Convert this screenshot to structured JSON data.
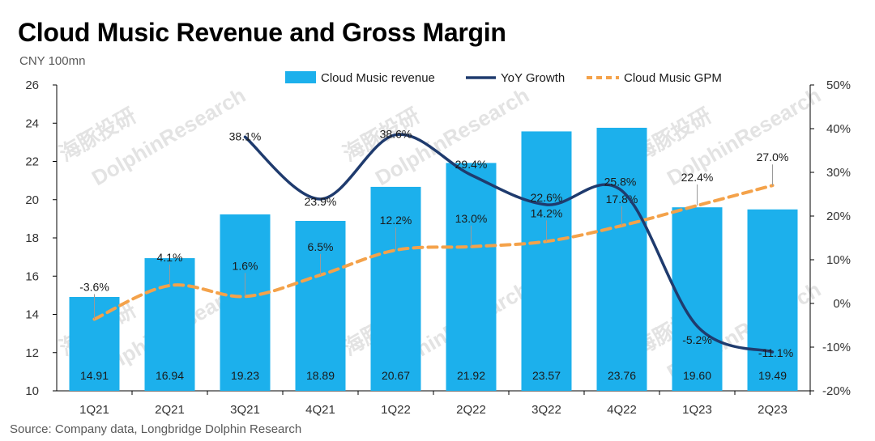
{
  "header": {
    "title": "Cloud Music Revenue and Gross Margin",
    "unit": "CNY 100mn"
  },
  "footer": {
    "source": "Source: Company data, Longbridge Dolphin Research"
  },
  "watermark": {
    "cn": "海豚投研",
    "en": "DolphinResearch"
  },
  "colors": {
    "bar": "#1cb0ec",
    "yoy_line": "#1f3b6e",
    "gpm_line": "#f4a24a",
    "axis": "#000000"
  },
  "chart_data": {
    "type": "bar",
    "categories": [
      "1Q21",
      "2Q21",
      "3Q21",
      "4Q21",
      "1Q22",
      "2Q22",
      "3Q22",
      "4Q22",
      "1Q23",
      "2Q23"
    ],
    "ylim": [
      10,
      26
    ],
    "y_ticks": [
      "10",
      "12",
      "14",
      "16",
      "18",
      "20",
      "22",
      "24",
      "26"
    ],
    "y2lim": [
      -20,
      50
    ],
    "y2_ticks": [
      "-20%",
      "-10%",
      "0%",
      "10%",
      "20%",
      "30%",
      "40%",
      "50%"
    ],
    "legend_position": "top-right",
    "grid": false,
    "series": [
      {
        "name": "Cloud Music revenue",
        "type": "bar",
        "axis": "left",
        "values": [
          14.91,
          16.94,
          19.23,
          18.89,
          20.67,
          21.92,
          23.57,
          23.76,
          19.6,
          19.49
        ],
        "labels": [
          "14.91",
          "16.94",
          "19.23",
          "18.89",
          "20.67",
          "21.92",
          "23.57",
          "23.76",
          "19.60",
          "19.49"
        ]
      },
      {
        "name": "YoY Growth",
        "type": "line",
        "style": "solid",
        "axis": "right",
        "values": [
          null,
          null,
          38.1,
          23.9,
          38.6,
          29.4,
          22.6,
          25.8,
          -5.2,
          -11.1
        ],
        "labels": [
          "",
          "",
          "38.1%",
          "23.9%",
          "38.6%",
          "29.4%",
          "22.6%",
          "25.8%",
          "-5.2%",
          "-11.1%"
        ]
      },
      {
        "name": "Cloud Music GPM",
        "type": "line",
        "style": "dashed",
        "axis": "right",
        "values": [
          -3.6,
          4.1,
          1.6,
          6.5,
          12.2,
          13.0,
          14.2,
          17.8,
          22.4,
          27.0
        ],
        "labels": [
          "-3.6%",
          "4.1%",
          "1.6%",
          "6.5%",
          "12.2%",
          "13.0%",
          "14.2%",
          "17.8%",
          "22.4%",
          "27.0%"
        ]
      }
    ]
  }
}
